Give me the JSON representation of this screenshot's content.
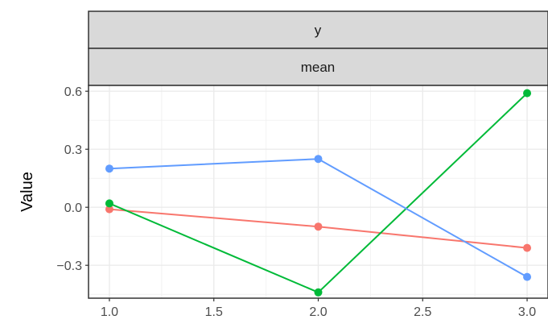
{
  "chart_data": {
    "type": "line",
    "facet_strips": [
      "y",
      "mean"
    ],
    "xlabel": "",
    "ylabel": "Value",
    "xlim": [
      0.9,
      3.1
    ],
    "ylim": [
      -0.47,
      0.63
    ],
    "x_ticks": [
      1.0,
      1.5,
      2.0,
      2.5,
      3.0
    ],
    "x_tick_labels": [
      "1.0",
      "1.5",
      "2.0",
      "2.5",
      "3.0"
    ],
    "y_ticks": [
      0.6,
      0.3,
      0.0,
      -0.3
    ],
    "y_tick_labels": [
      "0.6",
      "0.3",
      "0.0",
      "−0.3"
    ],
    "grid": true,
    "legend": "none",
    "series": [
      {
        "color": "#F8766D",
        "x": [
          1.0,
          2.0,
          3.0
        ],
        "y": [
          -0.01,
          -0.1,
          -0.21
        ]
      },
      {
        "color": "#00BA38",
        "x": [
          1.0,
          2.0,
          3.0
        ],
        "y": [
          0.02,
          -0.44,
          0.59
        ]
      },
      {
        "color": "#619CFF",
        "x": [
          1.0,
          2.0,
          3.0
        ],
        "y": [
          0.2,
          0.25,
          -0.36
        ]
      }
    ]
  }
}
